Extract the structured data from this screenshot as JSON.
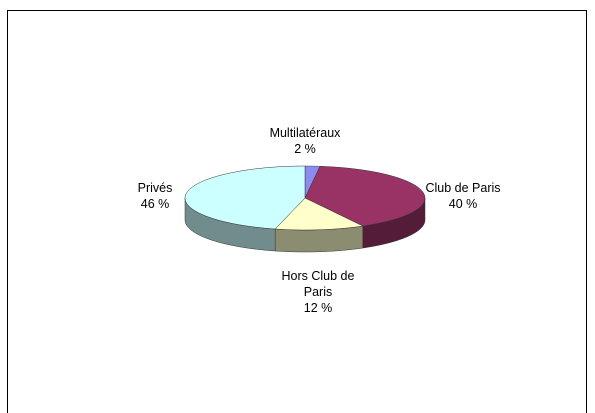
{
  "chart_data": {
    "type": "pie",
    "categories": [
      "Multilatéraux",
      "Club de Paris",
      "Hors Club de Paris",
      "Privés"
    ],
    "values": [
      2,
      40,
      12,
      46
    ],
    "value_labels": [
      "2 %",
      "40 %",
      "12 %",
      "46 %"
    ],
    "colors": [
      "#8c8cf0",
      "#993366",
      "#ffffcc",
      "#ccffff"
    ]
  }
}
